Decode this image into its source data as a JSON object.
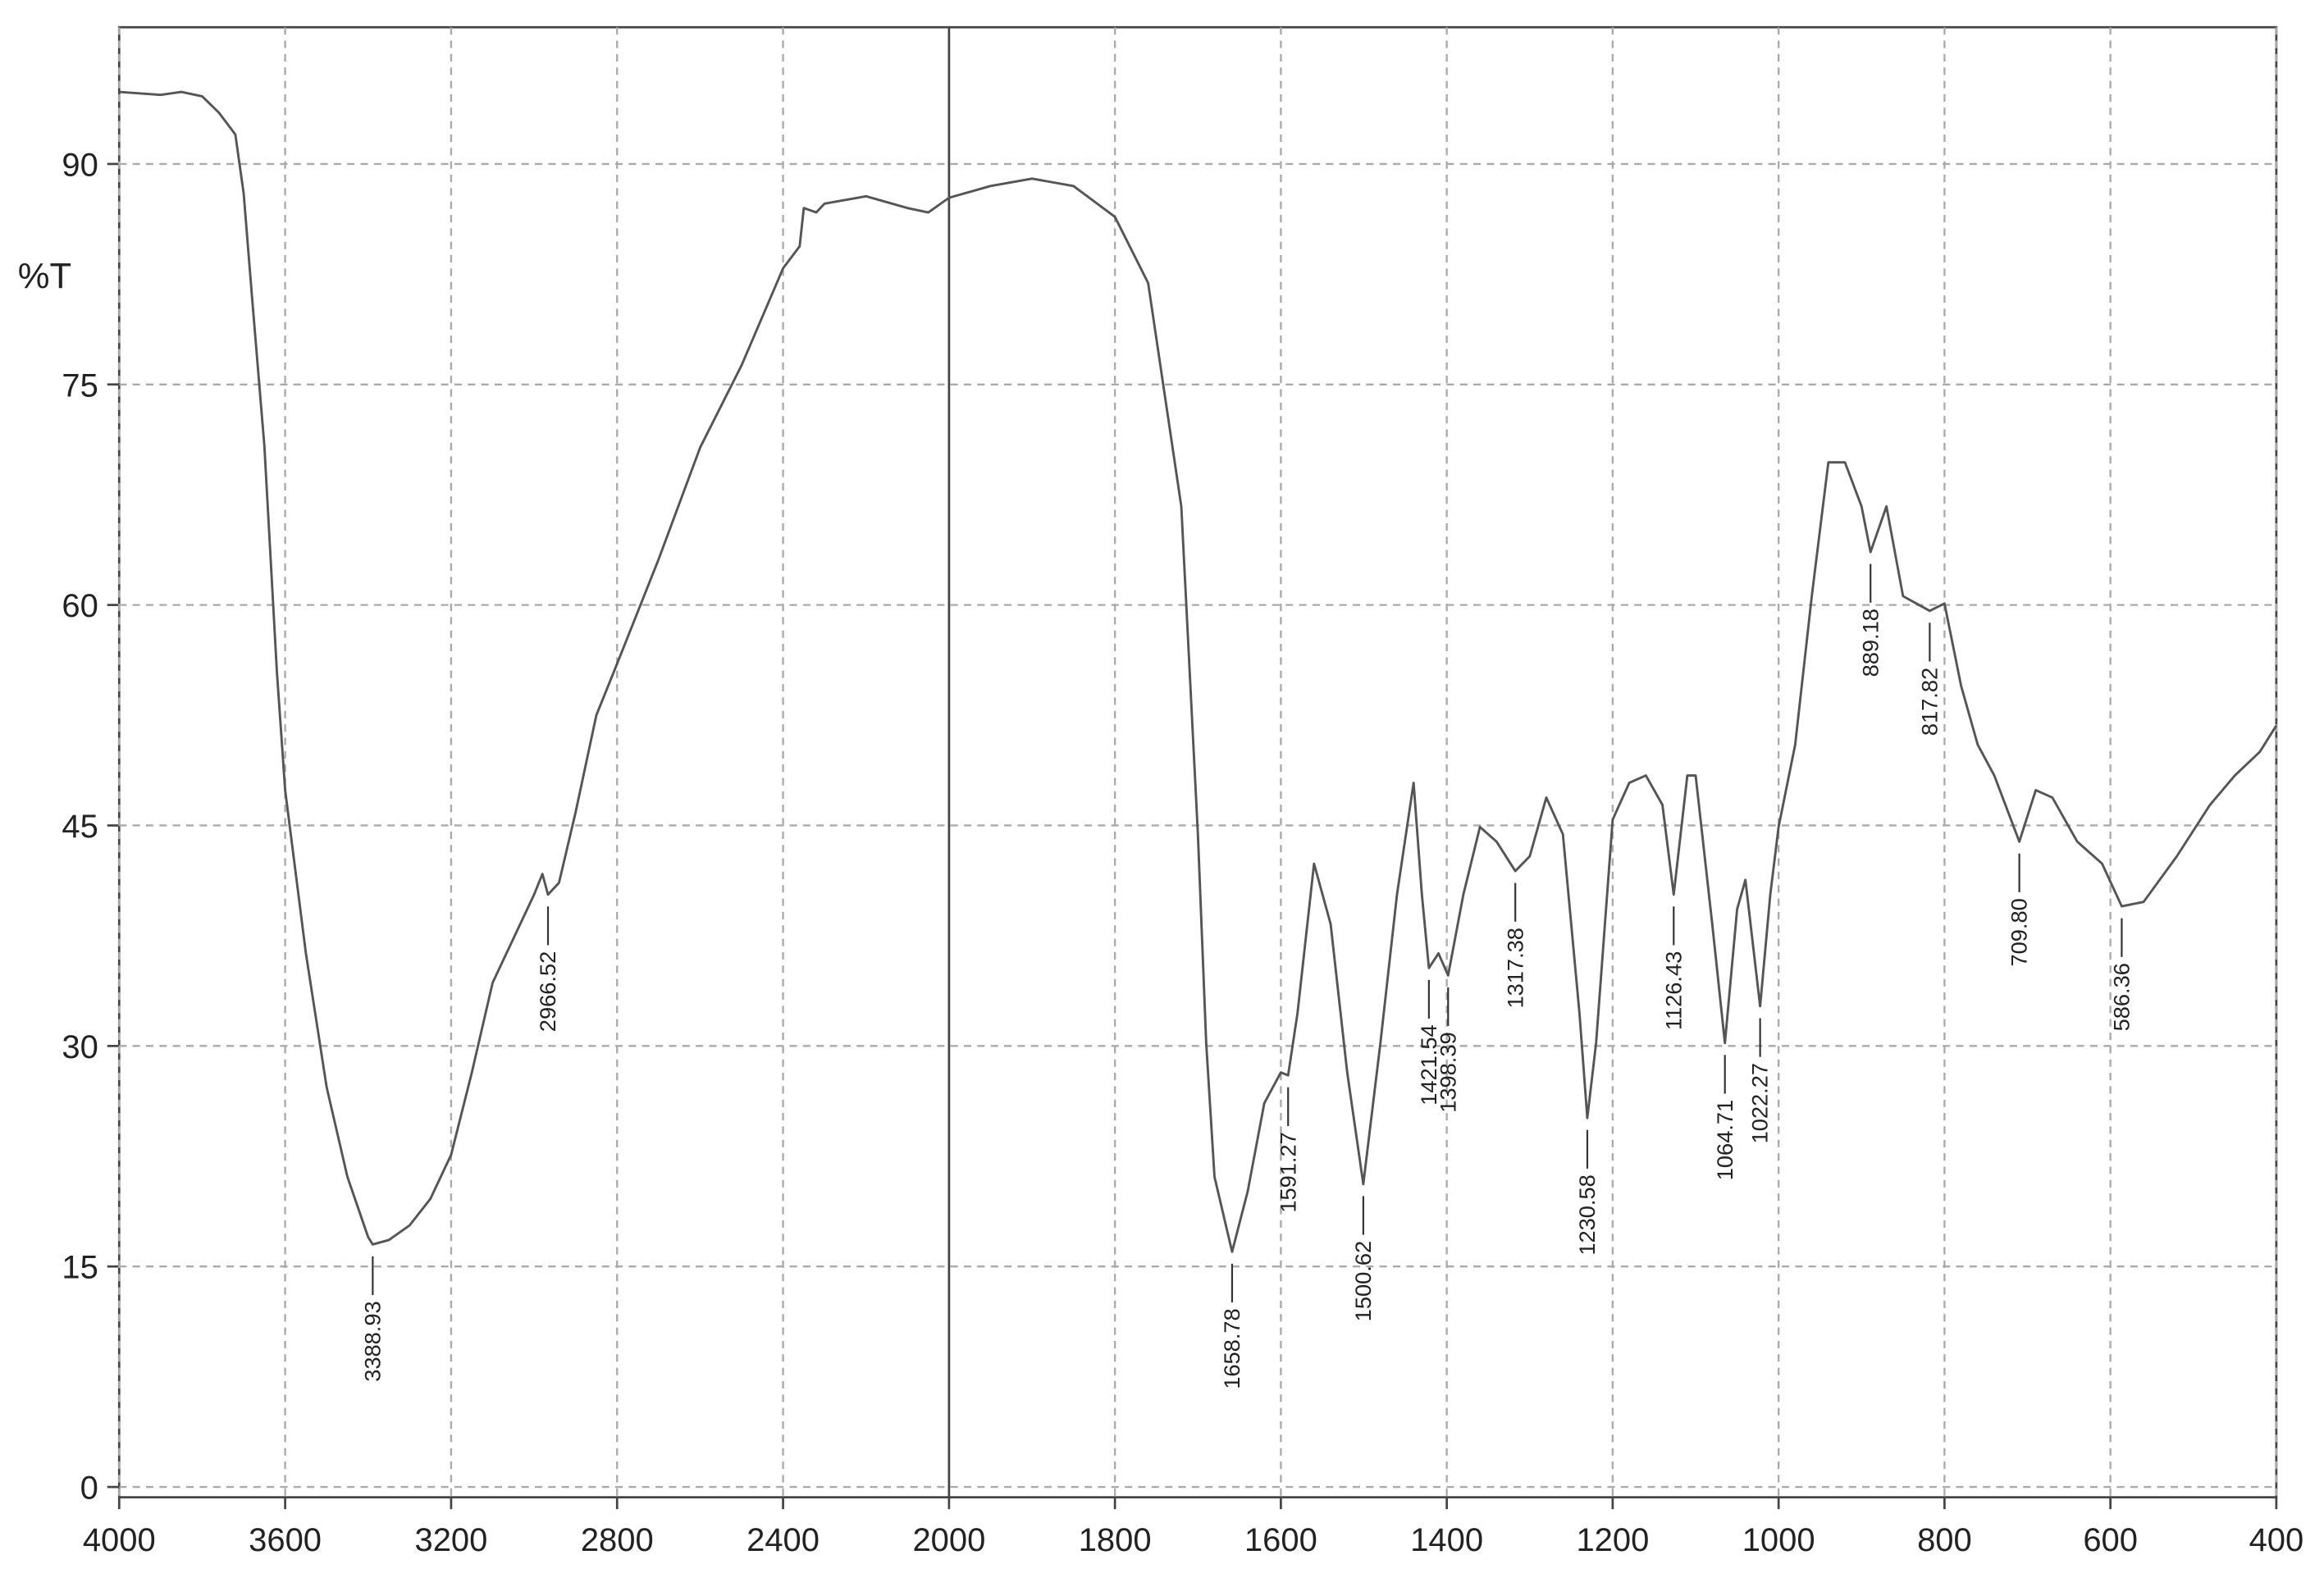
{
  "chart_data": {
    "type": "line",
    "y_label": "%T",
    "color": "#555555",
    "grid": true,
    "xlim": [
      4000,
      400
    ],
    "x_scale_break": 2000,
    "ylim": [
      -0.7,
      99.3
    ],
    "xticks": [
      4000,
      3600,
      3200,
      2800,
      2400,
      2000,
      1800,
      1600,
      1400,
      1200,
      1000,
      800,
      600,
      400
    ],
    "yticks": [
      0,
      15,
      30,
      45,
      60,
      75,
      90
    ],
    "x": [
      4000,
      3900,
      3850,
      3800,
      3760,
      3720,
      3700,
      3680,
      3650,
      3620,
      3600,
      3550,
      3500,
      3450,
      3400,
      3388.93,
      3350,
      3300,
      3250,
      3200,
      3150,
      3100,
      3050,
      3000,
      2980,
      2966.52,
      2940,
      2900,
      2850,
      2800,
      2700,
      2600,
      2500,
      2400,
      2360,
      2350,
      2320,
      2300,
      2200,
      2100,
      2050,
      2000,
      1950,
      1900,
      1850,
      1800,
      1760,
      1720,
      1700,
      1690,
      1680,
      1658.78,
      1640,
      1620,
      1600,
      1591.27,
      1580,
      1560,
      1540,
      1520,
      1500.62,
      1480,
      1460,
      1440,
      1430,
      1421.54,
      1410,
      1398.39,
      1380,
      1360,
      1340,
      1317.38,
      1300,
      1280,
      1260,
      1240,
      1230.58,
      1220,
      1200,
      1180,
      1160,
      1140,
      1126.43,
      1110,
      1100,
      1080,
      1064.71,
      1050,
      1040,
      1022.27,
      1010,
      1000,
      980,
      960,
      940,
      920,
      900,
      889.18,
      870,
      850,
      817.82,
      800,
      780,
      760,
      740,
      709.8,
      690,
      670,
      640,
      610,
      586.36,
      560,
      520,
      480,
      450,
      420,
      400
    ],
    "values": [
      94.9,
      94.7,
      94.9,
      94.6,
      93.5,
      92,
      88,
      81,
      70.8,
      55.5,
      47.4,
      36.3,
      27.2,
      21.1,
      17,
      16.5,
      16.8,
      17.8,
      19.6,
      22.6,
      28.2,
      34.3,
      37.3,
      40.3,
      41.7,
      40.3,
      41.1,
      45.9,
      52.5,
      56,
      63.1,
      70.7,
      76.3,
      82.9,
      84.4,
      87,
      86.7,
      87.3,
      87.8,
      87,
      86.7,
      87.7,
      88.5,
      89,
      88.5,
      86.4,
      81.9,
      66.7,
      44.4,
      30.2,
      21.1,
      16,
      20.1,
      26.1,
      28.2,
      28,
      32.2,
      42.4,
      38.3,
      28.2,
      20.6,
      30.2,
      40.3,
      47.9,
      40.3,
      35.3,
      36.3,
      34.8,
      40.3,
      44.9,
      43.9,
      41.9,
      42.9,
      46.9,
      44.4,
      32.2,
      25.1,
      30.2,
      45.4,
      47.9,
      48.4,
      46.4,
      40.3,
      48.4,
      48.4,
      38.3,
      30.2,
      39.3,
      41.3,
      32.7,
      40.3,
      44.9,
      50.5,
      60.6,
      69.7,
      69.7,
      66.7,
      63.6,
      66.7,
      60.6,
      59.6,
      60.1,
      54.5,
      50.5,
      48.4,
      43.9,
      47.4,
      46.9,
      43.9,
      42.4,
      39.5,
      39.8,
      42.9,
      46.4,
      48.4,
      50,
      51.8
    ],
    "peaks": [
      3388.93,
      2966.52,
      1658.78,
      1591.27,
      1500.62,
      1421.54,
      1398.39,
      1317.38,
      1230.58,
      1126.43,
      1064.71,
      1022.27,
      889.18,
      817.82,
      {
        "value": 709.8,
        "label": "709.80"
      },
      586.36
    ]
  }
}
